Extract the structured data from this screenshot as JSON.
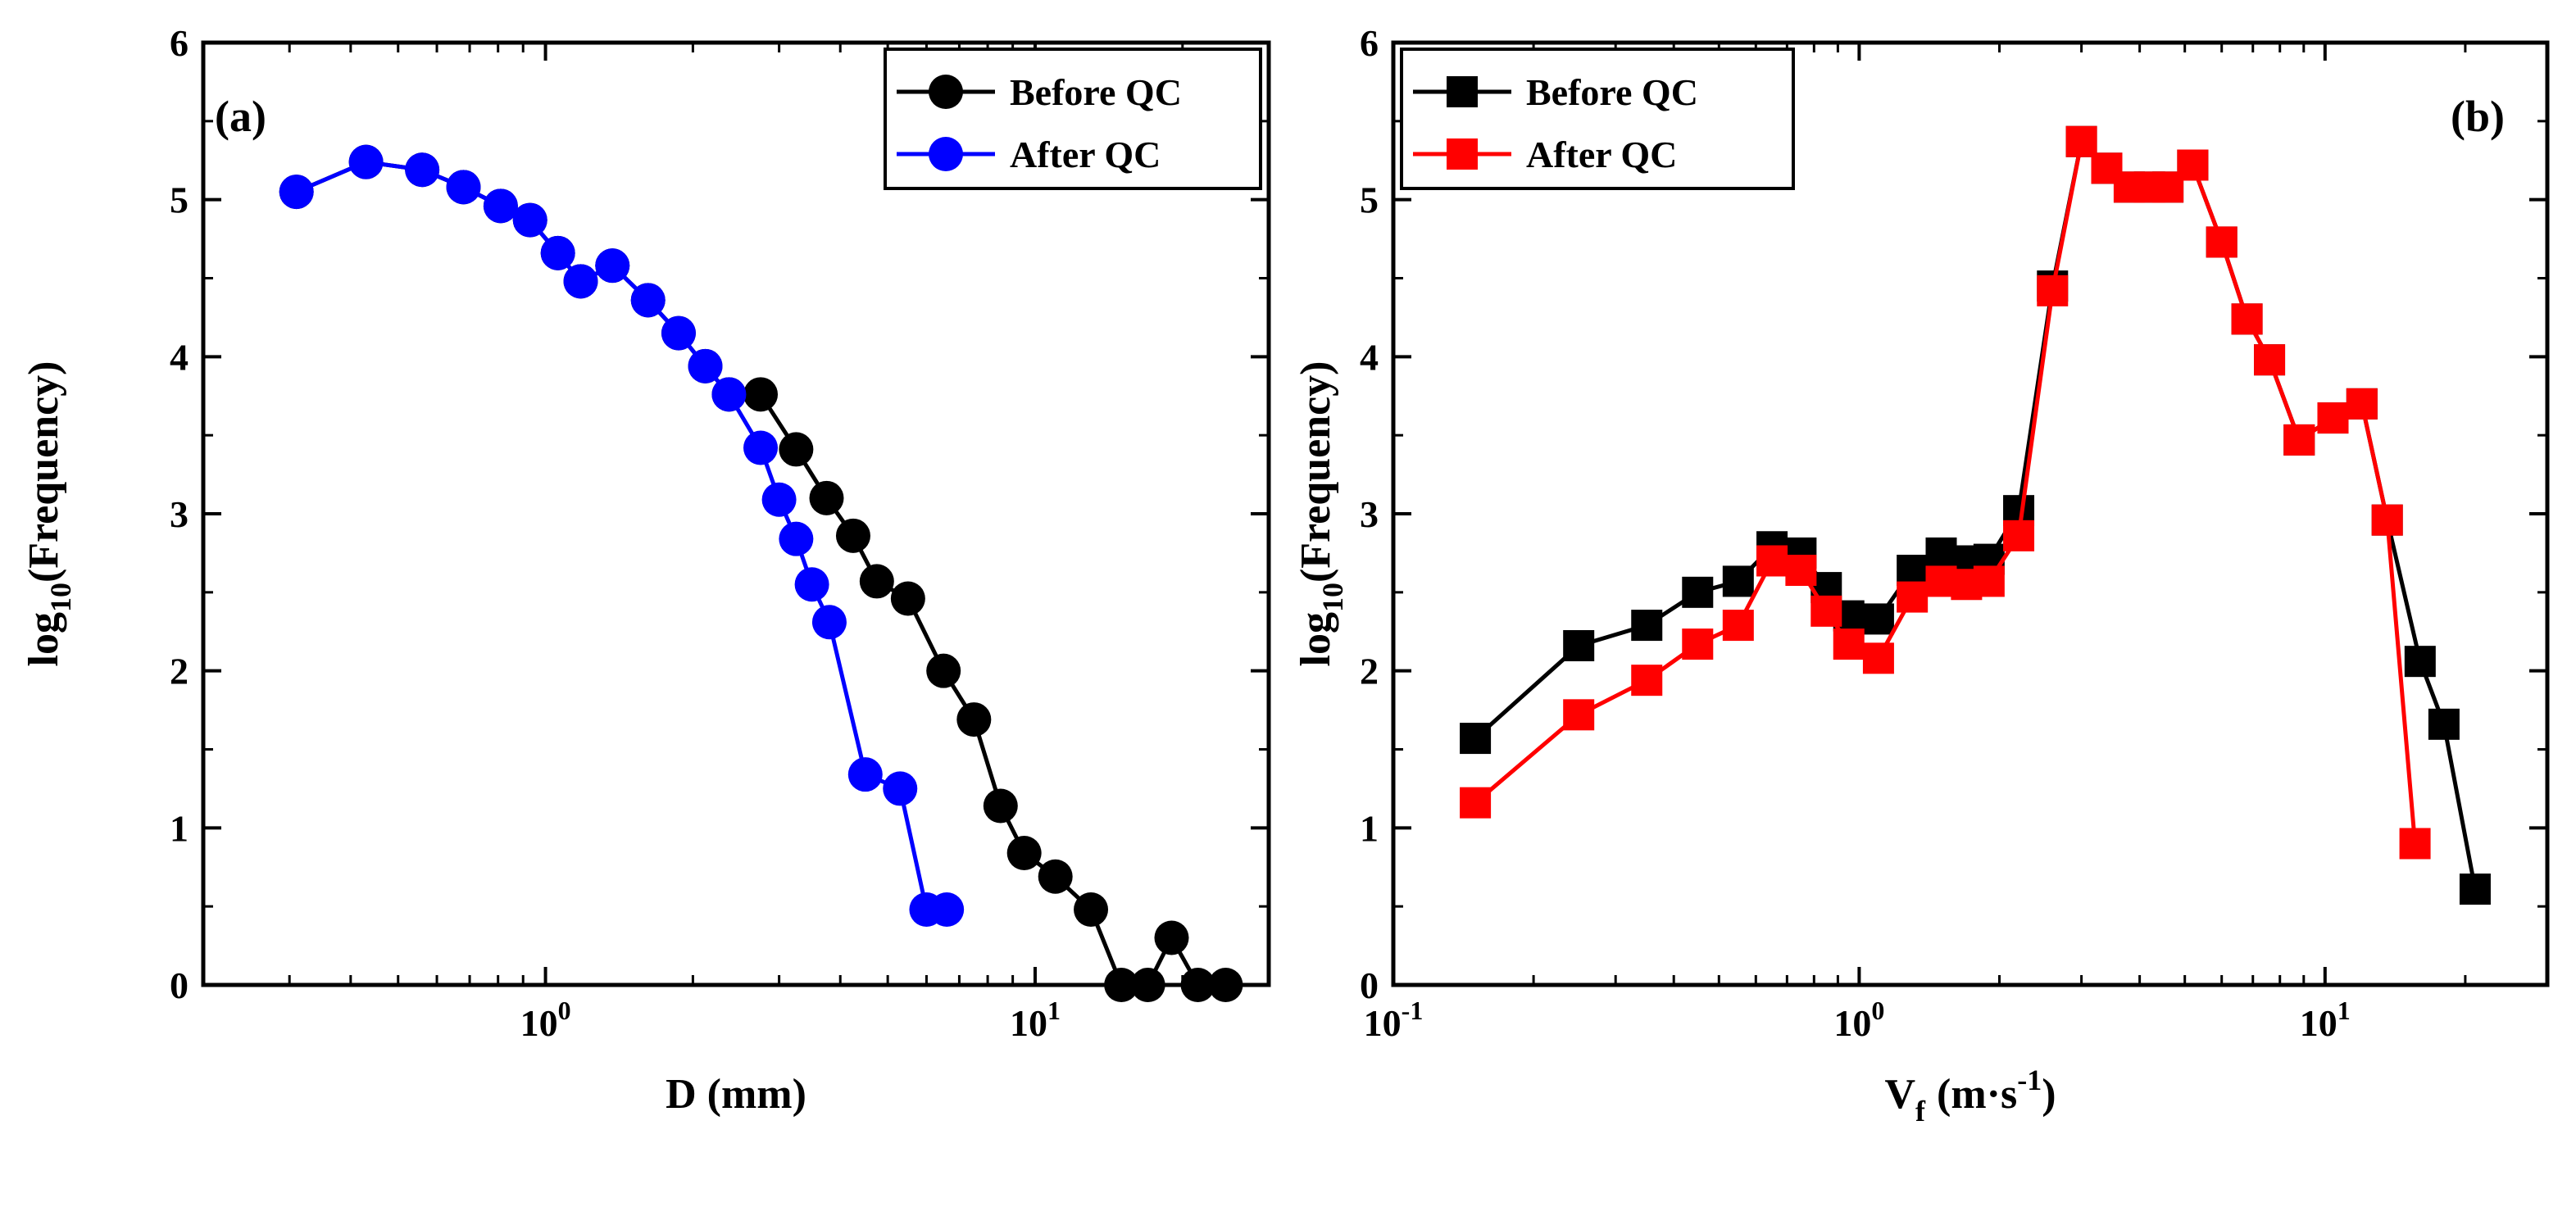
{
  "chart_data": [
    {
      "type": "line",
      "panel_label": "(a)",
      "xscale": "log",
      "xlim": [
        0.2,
        30
      ],
      "ylim": [
        0,
        6
      ],
      "xlabel": "D (mm)",
      "ylabel": {
        "prefix": "log",
        "sub": "10",
        "suffix": "(Frequency)"
      },
      "xticks": [
        {
          "base": "10",
          "exp": "0"
        },
        {
          "base": "10",
          "exp": "1"
        }
      ],
      "yticks": [
        "0",
        "1",
        "2",
        "3",
        "4",
        "5",
        "6"
      ],
      "legend_position": "top-right",
      "series": [
        {
          "name": "Before QC",
          "color": "#000000",
          "marker": "circle",
          "x": [
            0.31,
            0.43,
            0.56,
            0.68,
            0.81,
            0.93,
            1.06,
            1.18,
            1.37,
            1.62,
            1.87,
            2.12,
            2.37,
            2.75,
            3.25,
            3.75,
            4.25,
            4.75,
            5.5,
            6.5,
            7.5,
            8.5,
            9.5,
            11,
            13,
            15,
            17,
            19,
            21.5,
            24.5
          ],
          "y": [
            5.05,
            5.24,
            5.19,
            5.08,
            4.96,
            4.87,
            4.66,
            4.48,
            4.58,
            4.36,
            4.15,
            3.94,
            3.76,
            3.76,
            3.41,
            3.1,
            2.86,
            2.57,
            2.46,
            2.0,
            1.69,
            1.14,
            0.84,
            0.69,
            0.48,
            0.0,
            0.0,
            0.3,
            0.0,
            0.0
          ]
        },
        {
          "name": "After QC",
          "color": "#0000ff",
          "marker": "circle",
          "x": [
            0.31,
            0.43,
            0.56,
            0.68,
            0.81,
            0.93,
            1.06,
            1.18,
            1.37,
            1.62,
            1.87,
            2.12,
            2.37,
            2.75,
            3.0,
            3.25,
            3.5,
            3.8,
            4.5,
            5.3,
            6.0,
            6.6
          ],
          "y": [
            5.05,
            5.24,
            5.19,
            5.08,
            4.96,
            4.87,
            4.66,
            4.48,
            4.58,
            4.36,
            4.15,
            3.94,
            3.76,
            3.42,
            3.09,
            2.84,
            2.55,
            2.31,
            1.34,
            1.25,
            0.48,
            0.48
          ]
        }
      ]
    },
    {
      "type": "line",
      "panel_label": "(b)",
      "xscale": "log",
      "xlim": [
        0.1,
        30
      ],
      "ylim": [
        0,
        6
      ],
      "xlabel": {
        "main": "V",
        "sub": "f",
        "suffix": "(m·s",
        "sup": "-1",
        "end": ")"
      },
      "ylabel": {
        "prefix": "log",
        "sub": "10",
        "suffix": "(Frequency)"
      },
      "xticks": [
        {
          "base": "10",
          "exp": "-1"
        },
        {
          "base": "10",
          "exp": "0"
        },
        {
          "base": "10",
          "exp": "1"
        }
      ],
      "yticks": [
        "0",
        "1",
        "2",
        "3",
        "4",
        "5",
        "6"
      ],
      "legend_position": "top-left",
      "series": [
        {
          "name": "Before QC",
          "color": "#000000",
          "marker": "square",
          "x": [
            0.15,
            0.25,
            0.35,
            0.45,
            0.55,
            0.65,
            0.75,
            0.85,
            0.95,
            1.1,
            1.3,
            1.5,
            1.7,
            1.9,
            2.2,
            2.6,
            3.0,
            3.4,
            3.8,
            4.2,
            4.6,
            5.2,
            6.0,
            6.8,
            7.6,
            8.8,
            10.4,
            12.0,
            13.6,
            16.0,
            18.0,
            21.0
          ],
          "y": [
            1.57,
            2.16,
            2.29,
            2.5,
            2.57,
            2.79,
            2.75,
            2.53,
            2.35,
            2.33,
            2.64,
            2.75,
            2.7,
            2.71,
            3.02,
            4.45,
            5.37,
            5.2,
            5.08,
            5.08,
            5.08,
            5.22,
            4.73,
            4.24,
            3.98,
            3.47,
            3.61,
            3.7,
            2.96,
            2.06,
            1.66,
            0.61
          ]
        },
        {
          "name": "After QC",
          "color": "#ff0000",
          "marker": "square",
          "x": [
            0.15,
            0.25,
            0.35,
            0.45,
            0.55,
            0.65,
            0.75,
            0.85,
            0.95,
            1.1,
            1.3,
            1.5,
            1.7,
            1.9,
            2.2,
            2.6,
            3.0,
            3.4,
            3.8,
            4.2,
            4.6,
            5.2,
            6.0,
            6.8,
            7.6,
            8.8,
            10.4,
            12.0,
            13.6,
            15.6
          ],
          "y": [
            1.16,
            1.72,
            1.94,
            2.17,
            2.29,
            2.7,
            2.64,
            2.38,
            2.17,
            2.08,
            2.47,
            2.57,
            2.55,
            2.57,
            2.86,
            4.42,
            5.37,
            5.2,
            5.08,
            5.08,
            5.08,
            5.22,
            4.73,
            4.24,
            3.98,
            3.47,
            3.61,
            3.7,
            2.96,
            0.9
          ]
        }
      ]
    }
  ]
}
